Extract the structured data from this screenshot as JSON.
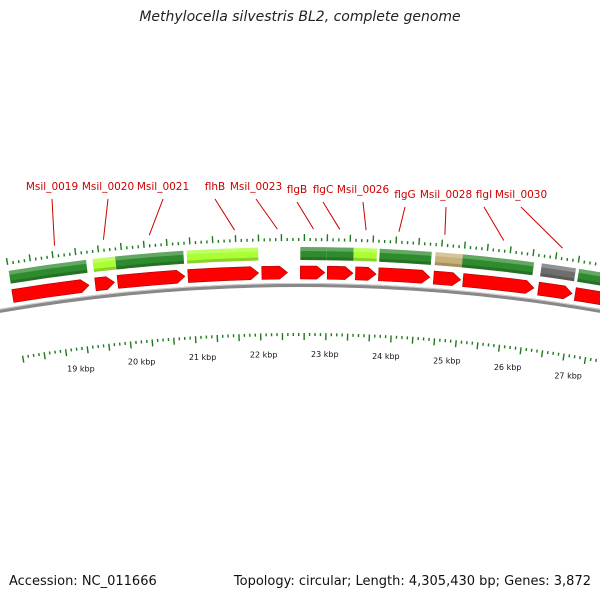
{
  "title": "Methylocella silvestris BL2, complete genome",
  "footer": {
    "accession_label": "Accession: NC_011666",
    "summary_label": "Topology: circular; Length: 4,305,430 bp; Genes: 3,872"
  },
  "view": {
    "start_kbp": 18.1,
    "end_kbp": 27.75
  },
  "colors": {
    "cds": "#ff0000",
    "label": "#cc0000",
    "backbone": "#888888",
    "gc_tick": "#1e7a1e",
    "green_dark": "#2e8b2e",
    "green_light": "#aaff33",
    "tan": "#c8b078",
    "gray": "#6e6e6e"
  },
  "kbp_labels": [
    {
      "kbp": 19,
      "label": "19 kbp"
    },
    {
      "kbp": 20,
      "label": "20 kbp"
    },
    {
      "kbp": 21,
      "label": "21 kbp"
    },
    {
      "kbp": 22,
      "label": "22 kbp"
    },
    {
      "kbp": 23,
      "label": "23 kbp"
    },
    {
      "kbp": 24,
      "label": "24 kbp"
    },
    {
      "kbp": 25,
      "label": "25 kbp"
    },
    {
      "kbp": 26,
      "label": "26 kbp"
    },
    {
      "kbp": 27,
      "label": "27 kbp"
    }
  ],
  "genes": [
    {
      "label": "Msil_0019",
      "start_kbp": 18.1,
      "end_kbp": 19.3,
      "strand": "+"
    },
    {
      "label": "Msil_0020",
      "start_kbp": 19.4,
      "end_kbp": 19.7,
      "strand": "+"
    },
    {
      "label": "Msil_0021",
      "start_kbp": 19.75,
      "end_kbp": 20.8,
      "strand": "+"
    },
    {
      "label": "flhB",
      "start_kbp": 20.85,
      "end_kbp": 21.95,
      "strand": "+"
    },
    {
      "label": "Msil_0023",
      "start_kbp": 22.0,
      "end_kbp": 22.4,
      "strand": "+"
    },
    {
      "label": "flgB",
      "start_kbp": 22.6,
      "end_kbp": 22.98,
      "strand": "+"
    },
    {
      "label": "flgC",
      "start_kbp": 23.02,
      "end_kbp": 23.42,
      "strand": "+"
    },
    {
      "label": "Msil_0026",
      "start_kbp": 23.46,
      "end_kbp": 23.78,
      "strand": "+"
    },
    {
      "label": "flgG",
      "start_kbp": 23.82,
      "end_kbp": 24.62,
      "strand": "+"
    },
    {
      "label": "Msil_0028",
      "start_kbp": 24.68,
      "end_kbp": 25.1,
      "strand": "+"
    },
    {
      "label": "flgI",
      "start_kbp": 25.14,
      "end_kbp": 26.25,
      "strand": "+"
    },
    {
      "label": "Msil_0030",
      "start_kbp": 26.32,
      "end_kbp": 26.85,
      "strand": "+"
    },
    {
      "label": "",
      "start_kbp": 26.9,
      "end_kbp": 27.75,
      "strand": "+"
    }
  ],
  "label_anchors_kbp": [
    18.85,
    19.6,
    20.3,
    21.6,
    22.25,
    22.8,
    23.2,
    23.6,
    24.1,
    24.8,
    25.7,
    26.6
  ],
  "blast_bars": [
    {
      "start_kbp": 18.1,
      "end_kbp": 19.3,
      "color_key": "green_dark"
    },
    {
      "start_kbp": 19.4,
      "end_kbp": 19.75,
      "color_key": "green_light"
    },
    {
      "start_kbp": 19.75,
      "end_kbp": 20.8,
      "color_key": "green_dark"
    },
    {
      "start_kbp": 20.85,
      "end_kbp": 21.95,
      "color_key": "green_light"
    },
    {
      "start_kbp": 22.6,
      "end_kbp": 23.0,
      "color_key": "green_dark"
    },
    {
      "start_kbp": 23.0,
      "end_kbp": 23.42,
      "color_key": "green_dark"
    },
    {
      "start_kbp": 23.42,
      "end_kbp": 23.78,
      "color_key": "green_light"
    },
    {
      "start_kbp": 23.82,
      "end_kbp": 24.62,
      "color_key": "green_dark"
    },
    {
      "start_kbp": 24.68,
      "end_kbp": 25.1,
      "color_key": "tan"
    },
    {
      "start_kbp": 25.1,
      "end_kbp": 26.2,
      "color_key": "green_dark"
    },
    {
      "start_kbp": 26.32,
      "end_kbp": 26.85,
      "color_key": "gray"
    },
    {
      "start_kbp": 26.9,
      "end_kbp": 27.75,
      "color_key": "green_dark"
    }
  ]
}
